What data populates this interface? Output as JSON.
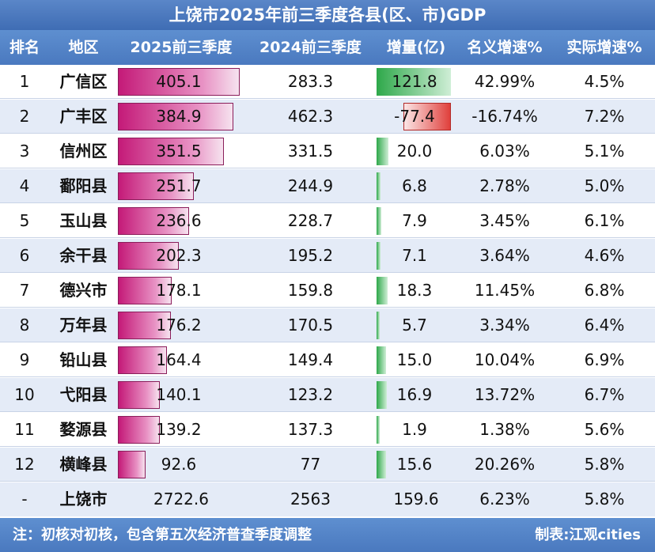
{
  "title": "上饶市2025年前三季度各县(区、市)GDP",
  "headers": [
    "排名",
    "地区",
    "2025前三季度",
    "2024前三季度",
    "增量(亿)",
    "名义增速%",
    "实际增速%"
  ],
  "rows": [
    {
      "rank": "1",
      "region": "广信区",
      "v2025": "405.1",
      "v2024": "283.3",
      "inc": "121.8",
      "nominal": "42.99%",
      "real": "4.5%"
    },
    {
      "rank": "2",
      "region": "广丰区",
      "v2025": "384.9",
      "v2024": "462.3",
      "inc": "-77.4",
      "nominal": "-16.74%",
      "real": "7.2%"
    },
    {
      "rank": "3",
      "region": "信州区",
      "v2025": "351.5",
      "v2024": "331.5",
      "inc": "20.0",
      "nominal": "6.03%",
      "real": "5.1%"
    },
    {
      "rank": "4",
      "region": "鄱阳县",
      "v2025": "251.7",
      "v2024": "244.9",
      "inc": "6.8",
      "nominal": "2.78%",
      "real": "5.0%"
    },
    {
      "rank": "5",
      "region": "玉山县",
      "v2025": "236.6",
      "v2024": "228.7",
      "inc": "7.9",
      "nominal": "3.45%",
      "real": "6.1%"
    },
    {
      "rank": "6",
      "region": "余干县",
      "v2025": "202.3",
      "v2024": "195.2",
      "inc": "7.1",
      "nominal": "3.64%",
      "real": "4.6%"
    },
    {
      "rank": "7",
      "region": "德兴市",
      "v2025": "178.1",
      "v2024": "159.8",
      "inc": "18.3",
      "nominal": "11.45%",
      "real": "6.8%"
    },
    {
      "rank": "8",
      "region": "万年县",
      "v2025": "176.2",
      "v2024": "170.5",
      "inc": "5.7",
      "nominal": "3.34%",
      "real": "6.4%"
    },
    {
      "rank": "9",
      "region": "铅山县",
      "v2025": "164.4",
      "v2024": "149.4",
      "inc": "15.0",
      "nominal": "10.04%",
      "real": "6.9%"
    },
    {
      "rank": "10",
      "region": "弋阳县",
      "v2025": "140.1",
      "v2024": "123.2",
      "inc": "16.9",
      "nominal": "13.72%",
      "real": "6.7%"
    },
    {
      "rank": "11",
      "region": "婺源县",
      "v2025": "139.2",
      "v2024": "137.3",
      "inc": "1.9",
      "nominal": "1.38%",
      "real": "5.6%"
    },
    {
      "rank": "12",
      "region": "横峰县",
      "v2025": "92.6",
      "v2024": "77",
      "inc": "15.6",
      "nominal": "20.26%",
      "real": "5.8%"
    }
  ],
  "total": {
    "rank": "-",
    "region": "上饶市",
    "v2025": "2722.6",
    "v2024": "2563",
    "inc": "159.6",
    "nominal": "6.23%",
    "real": "5.8%"
  },
  "footer": {
    "note": "注：初核对初核，包含第五次经济普查季度调整",
    "credit": "制表:江观cities"
  },
  "colors": {
    "header": "#4a79bf",
    "bar_2025": "#c41a78",
    "increase": "#2ea84a",
    "decrease": "#e0403c",
    "row_alt": "#e4ebf7"
  },
  "chart_data": {
    "type": "table",
    "title": "上饶市2025年前三季度各县(区、市)GDP",
    "columns": [
      "排名",
      "地区",
      "2025前三季度",
      "2024前三季度",
      "增量(亿)",
      "名义增速%",
      "实际增速%"
    ],
    "categories": [
      "广信区",
      "广丰区",
      "信州区",
      "鄱阳县",
      "玉山县",
      "余干县",
      "德兴市",
      "万年县",
      "铅山县",
      "弋阳县",
      "婺源县",
      "横峰县"
    ],
    "series": [
      {
        "name": "2025前三季度",
        "values": [
          405.1,
          384.9,
          351.5,
          251.7,
          236.6,
          202.3,
          178.1,
          176.2,
          164.4,
          140.1,
          139.2,
          92.6
        ]
      },
      {
        "name": "2024前三季度",
        "values": [
          283.3,
          462.3,
          331.5,
          244.9,
          228.7,
          195.2,
          159.8,
          170.5,
          149.4,
          123.2,
          137.3,
          77
        ]
      },
      {
        "name": "增量(亿)",
        "values": [
          121.8,
          -77.4,
          20.0,
          6.8,
          7.9,
          7.1,
          18.3,
          5.7,
          15.0,
          16.9,
          1.9,
          15.6
        ]
      },
      {
        "name": "名义增速%",
        "values": [
          42.99,
          -16.74,
          6.03,
          2.78,
          3.45,
          3.64,
          11.45,
          3.34,
          10.04,
          13.72,
          1.38,
          20.26
        ]
      },
      {
        "name": "实际增速%",
        "values": [
          4.5,
          7.2,
          5.1,
          5.0,
          6.1,
          4.6,
          6.8,
          6.4,
          6.9,
          6.7,
          5.6,
          5.8
        ]
      }
    ]
  }
}
